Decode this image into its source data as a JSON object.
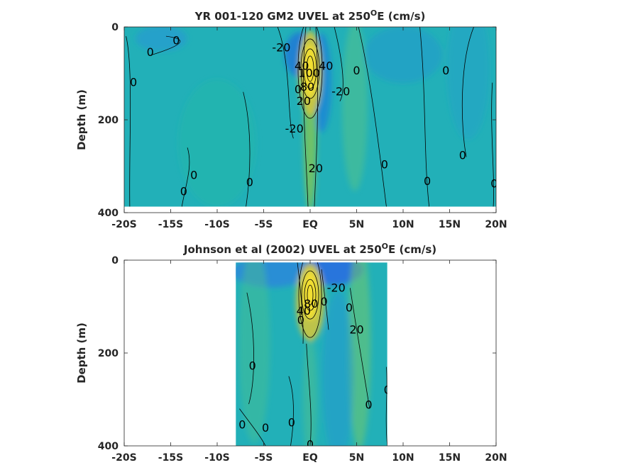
{
  "chart_data": [
    {
      "type": "heatmap",
      "title": "YR 001-120 GM2 UVEL at 250",
      "title_sup": "O",
      "title_tail": "E (cm/s)",
      "ylabel": "Depth (m)",
      "xticks": [
        "-20S",
        "-15S",
        "-10S",
        "-5S",
        "EQ",
        "5N",
        "10N",
        "15N",
        "20N"
      ],
      "yticks": [
        "0",
        "200",
        "400"
      ],
      "xlim": [
        -20,
        20
      ],
      "ylim": [
        0,
        400
      ],
      "data_extent": {
        "lat": [
          -20,
          20
        ],
        "depth": [
          0,
          387
        ]
      },
      "contour_interval": 20,
      "core": {
        "lat": 0,
        "depth": 90,
        "max": 100
      },
      "contour_labels": [
        {
          "text": "-20",
          "lat": -3.1,
          "depth": 45
        },
        {
          "text": "0",
          "lat": -17.2,
          "depth": 55
        },
        {
          "text": "0",
          "lat": -14.4,
          "depth": 30
        },
        {
          "text": "0",
          "lat": -19.0,
          "depth": 120
        },
        {
          "text": "40",
          "lat": -0.9,
          "depth": 85
        },
        {
          "text": "100",
          "lat": -0.1,
          "depth": 100
        },
        {
          "text": "80",
          "lat": -0.3,
          "depth": 130
        },
        {
          "text": "40",
          "lat": 1.7,
          "depth": 85
        },
        {
          "text": "0",
          "lat": -1.3,
          "depth": 135
        },
        {
          "text": "20",
          "lat": -0.7,
          "depth": 160
        },
        {
          "text": "-20",
          "lat": 3.3,
          "depth": 140
        },
        {
          "text": "-20",
          "lat": -1.7,
          "depth": 220
        },
        {
          "text": "0",
          "lat": 5.0,
          "depth": 95
        },
        {
          "text": "0",
          "lat": 14.6,
          "depth": 95
        },
        {
          "text": "20",
          "lat": 0.6,
          "depth": 305
        },
        {
          "text": "0",
          "lat": 8.0,
          "depth": 297
        },
        {
          "text": "0",
          "lat": 16.4,
          "depth": 277
        },
        {
          "text": "0",
          "lat": 12.6,
          "depth": 333
        },
        {
          "text": "0",
          "lat": 19.8,
          "depth": 338
        },
        {
          "text": "0",
          "lat": -12.5,
          "depth": 320
        },
        {
          "text": "0",
          "lat": -6.5,
          "depth": 335
        },
        {
          "text": "0",
          "lat": -13.6,
          "depth": 355
        }
      ]
    },
    {
      "type": "heatmap",
      "title": "Johnson et al (2002) UVEL at 250",
      "title_sup": "O",
      "title_tail": "E (cm/s)",
      "ylabel": "Depth (m)",
      "xticks": [
        "-20S",
        "-15S",
        "-10S",
        "-5S",
        "EQ",
        "5N",
        "10N",
        "15N",
        "20N"
      ],
      "yticks": [
        "0",
        "200",
        "400"
      ],
      "xlim": [
        -20,
        20
      ],
      "ylim": [
        0,
        400
      ],
      "data_extent": {
        "lat": [
          -8,
          8.3
        ],
        "depth": [
          5,
          400
        ]
      },
      "contour_interval": 20,
      "core": {
        "lat": 0,
        "depth": 75,
        "max": 90
      },
      "contour_labels": [
        {
          "text": "80",
          "lat": 0.1,
          "depth": 95
        },
        {
          "text": "40",
          "lat": -0.7,
          "depth": 110
        },
        {
          "text": "0",
          "lat": -1.0,
          "depth": 130
        },
        {
          "text": "0",
          "lat": 1.5,
          "depth": 90
        },
        {
          "text": "-20",
          "lat": 2.8,
          "depth": 60
        },
        {
          "text": "0",
          "lat": 4.2,
          "depth": 103
        },
        {
          "text": "20",
          "lat": 5.0,
          "depth": 150
        },
        {
          "text": "0",
          "lat": -6.2,
          "depth": 228
        },
        {
          "text": "0",
          "lat": 8.3,
          "depth": 280
        },
        {
          "text": "0",
          "lat": 6.3,
          "depth": 312
        },
        {
          "text": "0",
          "lat": -7.3,
          "depth": 355
        },
        {
          "text": "0",
          "lat": -4.8,
          "depth": 362
        },
        {
          "text": "0",
          "lat": -2.0,
          "depth": 350
        },
        {
          "text": "0",
          "lat": 0.0,
          "depth": 398
        }
      ]
    }
  ]
}
